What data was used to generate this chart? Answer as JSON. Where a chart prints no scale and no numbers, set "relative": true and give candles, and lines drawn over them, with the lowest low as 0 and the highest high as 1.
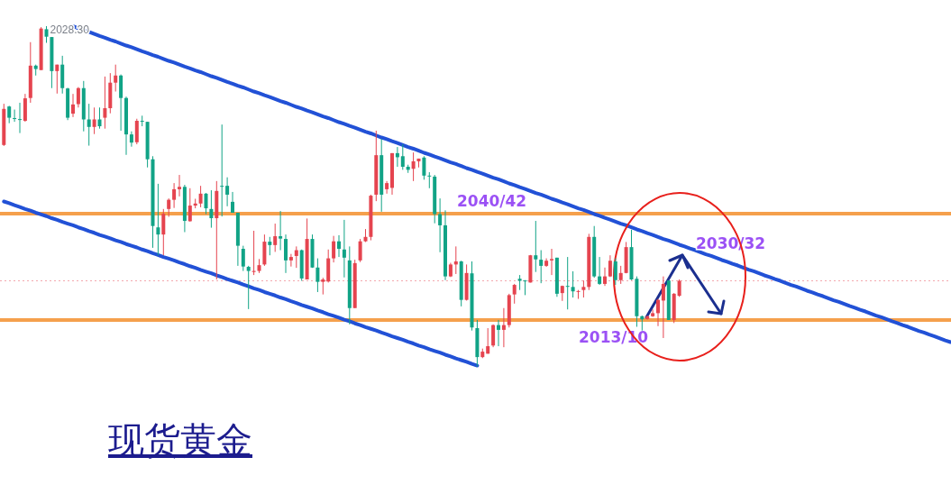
{
  "chart_data": {
    "type": "candlestick",
    "title": "现货黄金",
    "relative": true,
    "categories": [
      null,
      null,
      null,
      null,
      null,
      null,
      null,
      null,
      null,
      null,
      null,
      null,
      null,
      null,
      null,
      null,
      null,
      null,
      null,
      null,
      null,
      null,
      null,
      null,
      null,
      null,
      null,
      null,
      null,
      null,
      null,
      null,
      null,
      null,
      null,
      null,
      null,
      null,
      null,
      null,
      null,
      null,
      null,
      null,
      null,
      null,
      null,
      null,
      null,
      null,
      null,
      null,
      null,
      null,
      null,
      null,
      null,
      null,
      null,
      null,
      null,
      null,
      null,
      null,
      null,
      null,
      null,
      null,
      null,
      null,
      null,
      null,
      null,
      null,
      null,
      null,
      null,
      null,
      null,
      null,
      null,
      null,
      null,
      null,
      null,
      null,
      null,
      null,
      null,
      null,
      null,
      null,
      null,
      null,
      null,
      null,
      null,
      null,
      null,
      null,
      null,
      null,
      null,
      null,
      null,
      null,
      null,
      null,
      null,
      null,
      null,
      null,
      null,
      null,
      null,
      null,
      null,
      null,
      null,
      null,
      null,
      null,
      null,
      null,
      null,
      null,
      null,
      null,
      null,
      null,
      null,
      null,
      null,
      null,
      null,
      null,
      null,
      null,
      null,
      null,
      null,
      null,
      null,
      null,
      null,
      null,
      null,
      null,
      null,
      null,
      null,
      null,
      null,
      null,
      null,
      null,
      null,
      null,
      null,
      null,
      null,
      null,
      null,
      null,
      null,
      null,
      null,
      null,
      null,
      null,
      null,
      null,
      null,
      null,
      null,
      null,
      null,
      null,
      null
    ],
    "ohlc": [
      [
        0.651,
        0.772,
        0.648,
        0.757
      ],
      [
        0.764,
        0.766,
        0.715,
        0.731
      ],
      [
        0.73,
        0.755,
        0.719,
        0.728
      ],
      [
        0.727,
        0.775,
        0.686,
        0.726
      ],
      [
        0.722,
        0.801,
        0.719,
        0.788
      ],
      [
        0.789,
        0.953,
        0.775,
        0.884
      ],
      [
        0.884,
        0.887,
        0.855,
        0.874
      ],
      [
        0.871,
        0.997,
        0.871,
        0.993
      ],
      [
        0.991,
        1,
        0.951,
        0.969
      ],
      [
        0.968,
        0.968,
        0.818,
        0.868
      ],
      [
        0.868,
        0.887,
        0.802,
        0.887
      ],
      [
        0.887,
        0.913,
        0.802,
        0.818
      ],
      [
        0.817,
        0.819,
        0.724,
        0.731
      ],
      [
        0.743,
        0.801,
        0.733,
        0.77
      ],
      [
        0.771,
        0.821,
        0.761,
        0.818
      ],
      [
        0.818,
        0.839,
        0.691,
        0.726
      ],
      [
        0.726,
        0.772,
        0.649,
        0.704
      ],
      [
        0.704,
        0.761,
        0.683,
        0.726
      ],
      [
        0.726,
        0.761,
        0.699,
        0.706
      ],
      [
        0.731,
        0.852,
        0.699,
        0.759
      ],
      [
        0.759,
        0.862,
        0.744,
        0.834
      ],
      [
        0.834,
        0.887,
        0.808,
        0.855
      ],
      [
        0.855,
        0.858,
        0.693,
        0.789
      ],
      [
        0.789,
        0.793,
        0.622,
        0.682
      ],
      [
        0.682,
        0.691,
        0.646,
        0.658
      ],
      [
        0.659,
        0.728,
        0.653,
        0.722
      ],
      [
        0.722,
        0.737,
        0.706,
        0.72
      ],
      [
        0.719,
        0.719,
        0.585,
        0.609
      ],
      [
        0.609,
        0.618,
        0.349,
        0.413
      ],
      [
        0.409,
        0.537,
        0.327,
        0.388
      ],
      [
        0.388,
        0.463,
        0.327,
        0.449
      ],
      [
        0.463,
        0.494,
        0.44,
        0.49
      ],
      [
        0.49,
        0.539,
        0.466,
        0.521
      ],
      [
        0.521,
        0.563,
        0.5,
        0.528
      ],
      [
        0.528,
        0.534,
        0.395,
        0.428
      ],
      [
        0.427,
        0.524,
        0.426,
        0.473
      ],
      [
        0.473,
        0.493,
        0.465,
        0.479
      ],
      [
        0.479,
        0.531,
        0.468,
        0.508
      ],
      [
        0.508,
        0.51,
        0.448,
        0.465
      ],
      [
        0.463,
        0.518,
        0.408,
        0.436
      ],
      [
        0.436,
        0.545,
        0.256,
        0.516
      ],
      [
        0.531,
        0.711,
        0.441,
        0.529
      ],
      [
        0.531,
        0.556,
        0.471,
        0.505
      ],
      [
        0.484,
        0.513,
        0.452,
        0.452
      ],
      [
        0.452,
        0.452,
        0.296,
        0.355
      ],
      [
        0.346,
        0.355,
        0.281,
        0.294
      ],
      [
        0.293,
        0.296,
        0.169,
        0.281
      ],
      [
        0.278,
        0.399,
        0.269,
        0.281
      ],
      [
        0.281,
        0.316,
        0.275,
        0.298
      ],
      [
        0.3,
        0.388,
        0.296,
        0.367
      ],
      [
        0.367,
        0.381,
        0.327,
        0.357
      ],
      [
        0.357,
        0.42,
        0.337,
        0.383
      ],
      [
        0.383,
        0.457,
        0.342,
        0.376
      ],
      [
        0.375,
        0.388,
        0.275,
        0.312
      ],
      [
        0.312,
        0.331,
        0.294,
        0.322
      ],
      [
        0.325,
        0.353,
        0.29,
        0.342
      ],
      [
        0.342,
        0.344,
        0.252,
        0.259
      ],
      [
        0.256,
        0.435,
        0.256,
        0.375
      ],
      [
        0.375,
        0.388,
        0.29,
        0.291
      ],
      [
        0.291,
        0.318,
        0.219,
        0.249
      ],
      [
        0.249,
        0.261,
        0.212,
        0.256
      ],
      [
        0.25,
        0.344,
        0.247,
        0.318
      ],
      [
        0.318,
        0.384,
        0.306,
        0.368
      ],
      [
        0.368,
        0.386,
        0.322,
        0.346
      ],
      [
        0.344,
        0.431,
        0.262,
        0.32
      ],
      [
        0.312,
        0.353,
        0.124,
        0.172
      ],
      [
        0.172,
        0.314,
        0.172,
        0.304
      ],
      [
        0.312,
        0.375,
        0.307,
        0.368
      ],
      [
        0.368,
        0.404,
        0.366,
        0.381
      ],
      [
        0.381,
        0.505,
        0.371,
        0.502
      ],
      [
        0.505,
        0.693,
        0.486,
        0.621
      ],
      [
        0.621,
        0.669,
        0.455,
        0.505
      ],
      [
        0.521,
        0.545,
        0.508,
        0.539
      ],
      [
        0.525,
        0.627,
        0.505,
        0.627
      ],
      [
        0.627,
        0.645,
        0.587,
        0.615
      ],
      [
        0.618,
        0.653,
        0.578,
        0.587
      ],
      [
        0.587,
        0.593,
        0.569,
        0.578
      ],
      [
        0.581,
        0.629,
        0.545,
        0.603
      ],
      [
        0.603,
        0.611,
        0.585,
        0.611
      ],
      [
        0.614,
        0.618,
        0.549,
        0.561
      ],
      [
        0.561,
        0.571,
        0.524,
        0.559
      ],
      [
        0.558,
        0.563,
        0.421,
        0.448
      ],
      [
        0.448,
        0.494,
        0.336,
        0.415
      ],
      [
        0.415,
        0.459,
        0.254,
        0.265
      ],
      [
        0.265,
        0.305,
        0.263,
        0.3
      ],
      [
        0.3,
        0.353,
        0.272,
        0.309
      ],
      [
        0.309,
        0.311,
        0.177,
        0.196
      ],
      [
        0.196,
        0.3,
        0.194,
        0.275
      ],
      [
        0.274,
        0.309,
        0.106,
        0.115
      ],
      [
        0.113,
        0.137,
        0,
        0.028
      ],
      [
        0.028,
        0.053,
        0.025,
        0.044
      ],
      [
        0.038,
        0.113,
        0.038,
        0.06
      ],
      [
        0.062,
        0.124,
        0.057,
        0.122
      ],
      [
        0.122,
        0.137,
        0.06,
        0.108
      ],
      [
        0.108,
        0.172,
        0.057,
        0.122
      ],
      [
        0.122,
        0.214,
        0.115,
        0.21
      ],
      [
        0.212,
        0.243,
        0.185,
        0.24
      ],
      [
        0.258,
        0.269,
        0.225,
        0.252
      ],
      [
        0.253,
        0.254,
        0.21,
        0.251
      ],
      [
        0.247,
        0.328,
        0.247,
        0.327
      ],
      [
        0.327,
        0.428,
        0.278,
        0.315
      ],
      [
        0.314,
        0.342,
        0.245,
        0.296
      ],
      [
        0.296,
        0.318,
        0.293,
        0.311
      ],
      [
        0.312,
        0.346,
        0.269,
        0.316
      ],
      [
        0.32,
        0.32,
        0.205,
        0.214
      ],
      [
        0.216,
        0.238,
        0.193,
        0.237
      ],
      [
        0.237,
        0.322,
        0.168,
        0.236
      ],
      [
        0.234,
        0.28,
        0.203,
        0.221
      ],
      [
        0.221,
        0.225,
        0.199,
        0.222
      ],
      [
        0.225,
        0.253,
        0.203,
        0.234
      ],
      [
        0.234,
        0.39,
        0.225,
        0.381
      ],
      [
        0.381,
        0.413,
        0.261,
        0.265
      ],
      [
        0.265,
        0.322,
        0.24,
        0.243
      ],
      [
        0.243,
        0.291,
        0.237,
        0.265
      ],
      [
        0.265,
        0.327,
        0.263,
        0.311
      ],
      [
        0.309,
        0.318,
        0.24,
        0.254
      ],
      [
        0.254,
        0.296,
        0.243,
        0.275
      ],
      [
        0.275,
        0.366,
        0.274,
        0.351
      ],
      [
        0.351,
        0.402,
        0.254,
        0.256
      ],
      [
        0.258,
        0.265,
        0.117,
        0.148
      ],
      [
        0.148,
        0.15,
        0.106,
        0.139
      ],
      [
        0.14,
        0.15,
        0.138,
        0.148
      ],
      [
        0.148,
        0.168,
        0.146,
        0.157
      ],
      [
        0.157,
        0.199,
        0.119,
        0.196
      ],
      [
        0.194,
        0.265,
        0.084,
        0.243
      ],
      [
        0.253,
        0.253,
        0.137,
        0.137
      ],
      [
        0.137,
        0.216,
        0.128,
        0.214
      ],
      [
        0.208,
        0.256,
        0.205,
        0.252
      ],
      null,
      null,
      null,
      null,
      null,
      null,
      null,
      null,
      null,
      null,
      null,
      null,
      null,
      null,
      null,
      null,
      null,
      null,
      null,
      null,
      null,
      null,
      null,
      null,
      null,
      null,
      null,
      null,
      null,
      null,
      null,
      null,
      null,
      null,
      null,
      null,
      null,
      null,
      null,
      null,
      null,
      null,
      null,
      null,
      null,
      null,
      null,
      null,
      null,
      null,
      null
    ],
    "colors": [
      "#e5444f",
      "#11a386",
      "#11a386",
      "#11a386",
      "#e5444f",
      "#e5444f",
      "#11a386",
      "#e5444f",
      "#11a386",
      "#11a386",
      "#e5444f",
      "#11a386",
      "#11a386",
      "#e5444f",
      "#e5444f",
      "#11a386",
      "#11a386",
      "#e5444f",
      "#11a386",
      "#e5444f",
      "#e5444f",
      "#e5444f",
      "#11a386",
      "#11a386",
      "#11a386",
      "#e5444f",
      "#11a386",
      "#11a386",
      "#11a386",
      "#11a386",
      "#e5444f",
      "#e5444f",
      "#e5444f",
      "#e5444f",
      "#11a386",
      "#e5444f",
      "#e5444f",
      "#e5444f",
      "#11a386",
      "#11a386",
      "#e5444f",
      "#11a386",
      "#11a386",
      "#11a386",
      "#11a386",
      "#11a386",
      "#11a386",
      "#e5444f",
      "#e5444f",
      "#e5444f",
      "#11a386",
      "#e5444f",
      "#11a386",
      "#11a386",
      "#e5444f",
      "#e5444f",
      "#11a386",
      "#e5444f",
      "#11a386",
      "#11a386",
      "#e5444f",
      "#e5444f",
      "#e5444f",
      "#11a386",
      "#11a386",
      "#11a386",
      "#e5444f",
      "#e5444f",
      "#e5444f",
      "#e5444f",
      "#e5444f",
      "#11a386",
      "#e5444f",
      "#e5444f",
      "#11a386",
      "#11a386",
      "#11a386",
      "#e5444f",
      "#e5444f",
      "#11a386",
      "#11a386",
      "#11a386",
      "#11a386",
      "#11a386",
      "#e5444f",
      "#e5444f",
      "#11a386",
      "#e5444f",
      "#11a386",
      "#11a386",
      "#e5444f",
      "#e5444f",
      "#e5444f",
      "#11a386",
      "#e5444f",
      "#e5444f",
      "#e5444f",
      "#11a386",
      "#11a386",
      "#e5444f",
      "#11a386",
      "#11a386",
      "#e5444f",
      "#e5444f",
      "#11a386",
      "#e5444f",
      "#11a386",
      "#11a386",
      "#e5444f",
      "#e5444f",
      "#e5444f",
      "#11a386",
      "#11a386",
      "#e5444f",
      "#e5444f",
      "#11a386",
      "#e5444f",
      "#e5444f",
      "#11a386",
      "#11a386",
      "#11a386",
      "#e5444f",
      "#e5444f",
      "#e5444f",
      "#e5444f",
      "#11a386",
      "#e5444f",
      "#e5444f",
      null,
      null,
      null,
      null,
      null,
      null,
      null,
      null,
      null,
      null,
      null,
      null,
      null,
      null,
      null,
      null,
      null,
      null,
      null,
      null,
      null,
      null,
      null,
      null,
      null,
      null,
      null,
      null,
      null,
      null,
      null,
      null,
      null,
      null,
      null,
      null,
      null,
      null,
      null,
      null,
      null,
      null,
      null,
      null,
      null,
      null,
      null,
      null,
      null,
      null,
      null
    ],
    "series": [
      {
        "type": "line",
        "color": "#2251d6",
        "values": [
          null,
          null,
          null,
          null,
          null,
          null,
          null,
          null,
          null,
          null,
          null,
          null,
          null,
          1.0,
          0.994,
          0.988,
          0.983,
          0.977,
          0.971,
          0.966,
          0.96,
          0.955,
          0.949,
          0.943,
          0.938,
          0.932,
          0.926,
          0.921,
          0.915,
          0.91,
          0.904,
          0.898,
          0.893,
          0.887,
          0.881,
          0.876,
          0.87,
          0.865,
          0.859,
          0.853,
          0.848,
          0.842,
          0.836,
          0.831,
          0.825,
          0.82,
          0.814,
          0.808,
          0.803,
          0.797,
          0.792,
          0.786,
          0.78,
          0.775,
          0.769,
          0.763,
          0.758,
          0.752,
          0.747,
          0.741,
          0.735,
          0.73,
          0.724,
          0.718,
          0.713,
          0.707,
          0.702,
          0.696,
          0.69,
          0.685,
          0.679,
          0.673,
          0.668,
          0.662,
          0.657,
          0.651,
          0.645,
          0.64,
          0.634,
          0.628,
          0.623,
          0.617,
          0.612,
          0.606,
          0.6,
          0.595,
          0.589,
          0.583,
          0.578,
          0.572,
          0.567,
          0.561,
          0.555,
          0.55,
          0.544,
          0.538,
          0.533,
          0.527,
          0.522,
          0.516,
          0.51,
          0.505,
          0.499,
          0.493,
          0.488,
          0.482,
          0.477,
          0.471,
          0.465,
          0.46,
          0.454,
          0.448,
          0.443,
          0.437,
          0.432,
          0.426,
          0.42,
          0.415,
          0.409,
          0.403,
          0.398,
          0.392,
          0.387,
          0.381,
          0.375,
          0.37,
          0.364,
          0.358,
          0.353,
          0.347,
          0.342,
          0.336,
          0.33,
          0.325,
          0.319,
          0.313,
          0.308,
          0.302,
          0.297,
          0.291,
          0.285,
          0.28,
          0.274,
          0.268,
          0.263,
          0.257,
          0.252,
          0.246,
          0.24,
          0.235,
          0.229,
          0.223,
          0.218,
          0.212,
          0.207,
          0.201,
          0.195,
          0.19,
          0.184,
          0.178,
          0.173,
          0.167,
          0.162,
          0.156,
          0.15,
          0.145,
          0.139,
          0.133,
          0.128,
          0.122,
          0.117,
          0.111,
          0.105,
          0.1,
          0.094,
          0.089,
          0.083,
          0.077,
          0.072
        ]
      },
      {
        "type": "line",
        "color": "#2251d6",
        "values": [
          0.485,
          0.48,
          0.474,
          0.469,
          0.463,
          0.458,
          0.452,
          0.447,
          0.442,
          0.436,
          0.431,
          0.425,
          0.42,
          0.415,
          0.409,
          0.404,
          0.398,
          0.393,
          0.387,
          0.382,
          0.377,
          0.371,
          0.366,
          0.36,
          0.355,
          0.35,
          0.344,
          0.339,
          0.333,
          0.328,
          0.322,
          0.317,
          0.312,
          0.306,
          0.301,
          0.295,
          0.29,
          0.284,
          0.279,
          0.274,
          0.268,
          0.263,
          0.257,
          0.252,
          0.247,
          0.241,
          0.236,
          0.23,
          0.225,
          0.219,
          0.214,
          0.209,
          0.203,
          0.198,
          0.192,
          0.187,
          0.181,
          0.176,
          0.171,
          0.165,
          0.16,
          0.154,
          0.149,
          0.144,
          0.138,
          0.133,
          0.127,
          0.122,
          0.116,
          0.111,
          0.106,
          0.1,
          0.095,
          0.089,
          0.084,
          0.079,
          0.073,
          0.068,
          0.062,
          0.057,
          0.051,
          0.046,
          0.041,
          0.035,
          0.03,
          0.024,
          0.019,
          0.014,
          0.008,
          0.003,
          null,
          null,
          null,
          null,
          null,
          null,
          null,
          null,
          null,
          null,
          null,
          null,
          null,
          null,
          null,
          null,
          null,
          null,
          null,
          null,
          null,
          null,
          null,
          null,
          null,
          null,
          null,
          null,
          null,
          null,
          null,
          null,
          null,
          null,
          null,
          null,
          null,
          null,
          null,
          null,
          null,
          null,
          null,
          null,
          null,
          null,
          null,
          null,
          null,
          null,
          null,
          null,
          null,
          null,
          null,
          null,
          null,
          null,
          null,
          null,
          null,
          null,
          null,
          null,
          null,
          null,
          null,
          null,
          null,
          null,
          null,
          null,
          null,
          null,
          null,
          null,
          null,
          null,
          null,
          null,
          null,
          null,
          null,
          null,
          null,
          null,
          null,
          null,
          null
        ]
      }
    ],
    "ref_lines": [
      {
        "axis": "y",
        "value": 0.449,
        "color": "#f5a04c"
      },
      {
        "axis": "y",
        "value": 0.137,
        "color": "#f5a04c"
      },
      {
        "axis": "y",
        "value": 0.252,
        "color": "#f2a7ad",
        "line_style": "dotted"
      }
    ],
    "annotations": [
      {
        "text": "2028.30",
        "y": 1
      },
      "2040/42",
      "2013/10",
      "2030/32"
    ]
  }
}
